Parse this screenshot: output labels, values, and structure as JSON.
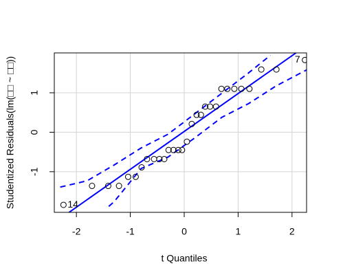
{
  "chart_data": {
    "type": "qq",
    "x_label": "t Quantiles",
    "y_label": "Studentized Residuals(lm(□□ ~ □□))",
    "xlim": [
      -2.41,
      2.27
    ],
    "ylim": [
      -2.03,
      2.01
    ],
    "xticks": [
      -2,
      -1,
      0,
      1,
      2
    ],
    "yticks": [
      -1,
      0,
      1
    ],
    "grid": true,
    "point_color": "#000000",
    "line_color": "#0000ff",
    "x": [
      -2.24,
      -1.71,
      -1.41,
      -1.21,
      -1.04,
      -0.9,
      -0.79,
      -0.69,
      -0.56,
      -0.46,
      -0.37,
      -0.29,
      -0.2,
      -0.11,
      -0.04,
      0.05,
      0.14,
      0.23,
      0.31,
      0.39,
      0.48,
      0.59,
      0.69,
      0.8,
      0.93,
      1.06,
      1.21,
      1.43,
      1.71,
      2.24
    ],
    "values": [
      -1.84,
      -1.36,
      -1.36,
      -1.36,
      -1.13,
      -1.13,
      -0.89,
      -0.68,
      -0.68,
      -0.68,
      -0.68,
      -0.45,
      -0.45,
      -0.45,
      -0.45,
      -0.24,
      0.21,
      0.44,
      0.44,
      0.65,
      0.65,
      0.65,
      1.1,
      1.1,
      1.1,
      1.1,
      1.1,
      1.59,
      1.59,
      1.83
    ],
    "reference_line": {
      "intercept": 0.02,
      "slope": 0.96
    },
    "envelope_upper": {
      "x": [
        -2.3,
        -1.8,
        -1.3,
        -0.8,
        -0.3,
        0.2,
        0.7,
        1.2,
        1.6
      ],
      "values": [
        -1.39,
        -1.23,
        -0.83,
        -0.4,
        -0.05,
        0.47,
        0.99,
        1.51,
        1.95
      ]
    },
    "envelope_lower": {
      "x": [
        -1.4,
        -1.3,
        -0.8,
        -0.3,
        0.2,
        0.7,
        1.2,
        1.7,
        2.3
      ],
      "values": [
        -1.88,
        -1.76,
        -0.92,
        -0.63,
        -0.14,
        0.38,
        0.73,
        1.17,
        1.6
      ]
    },
    "annotations": [
      {
        "text": "14",
        "point": 0
      },
      {
        "text": "7",
        "point": 29
      }
    ]
  }
}
